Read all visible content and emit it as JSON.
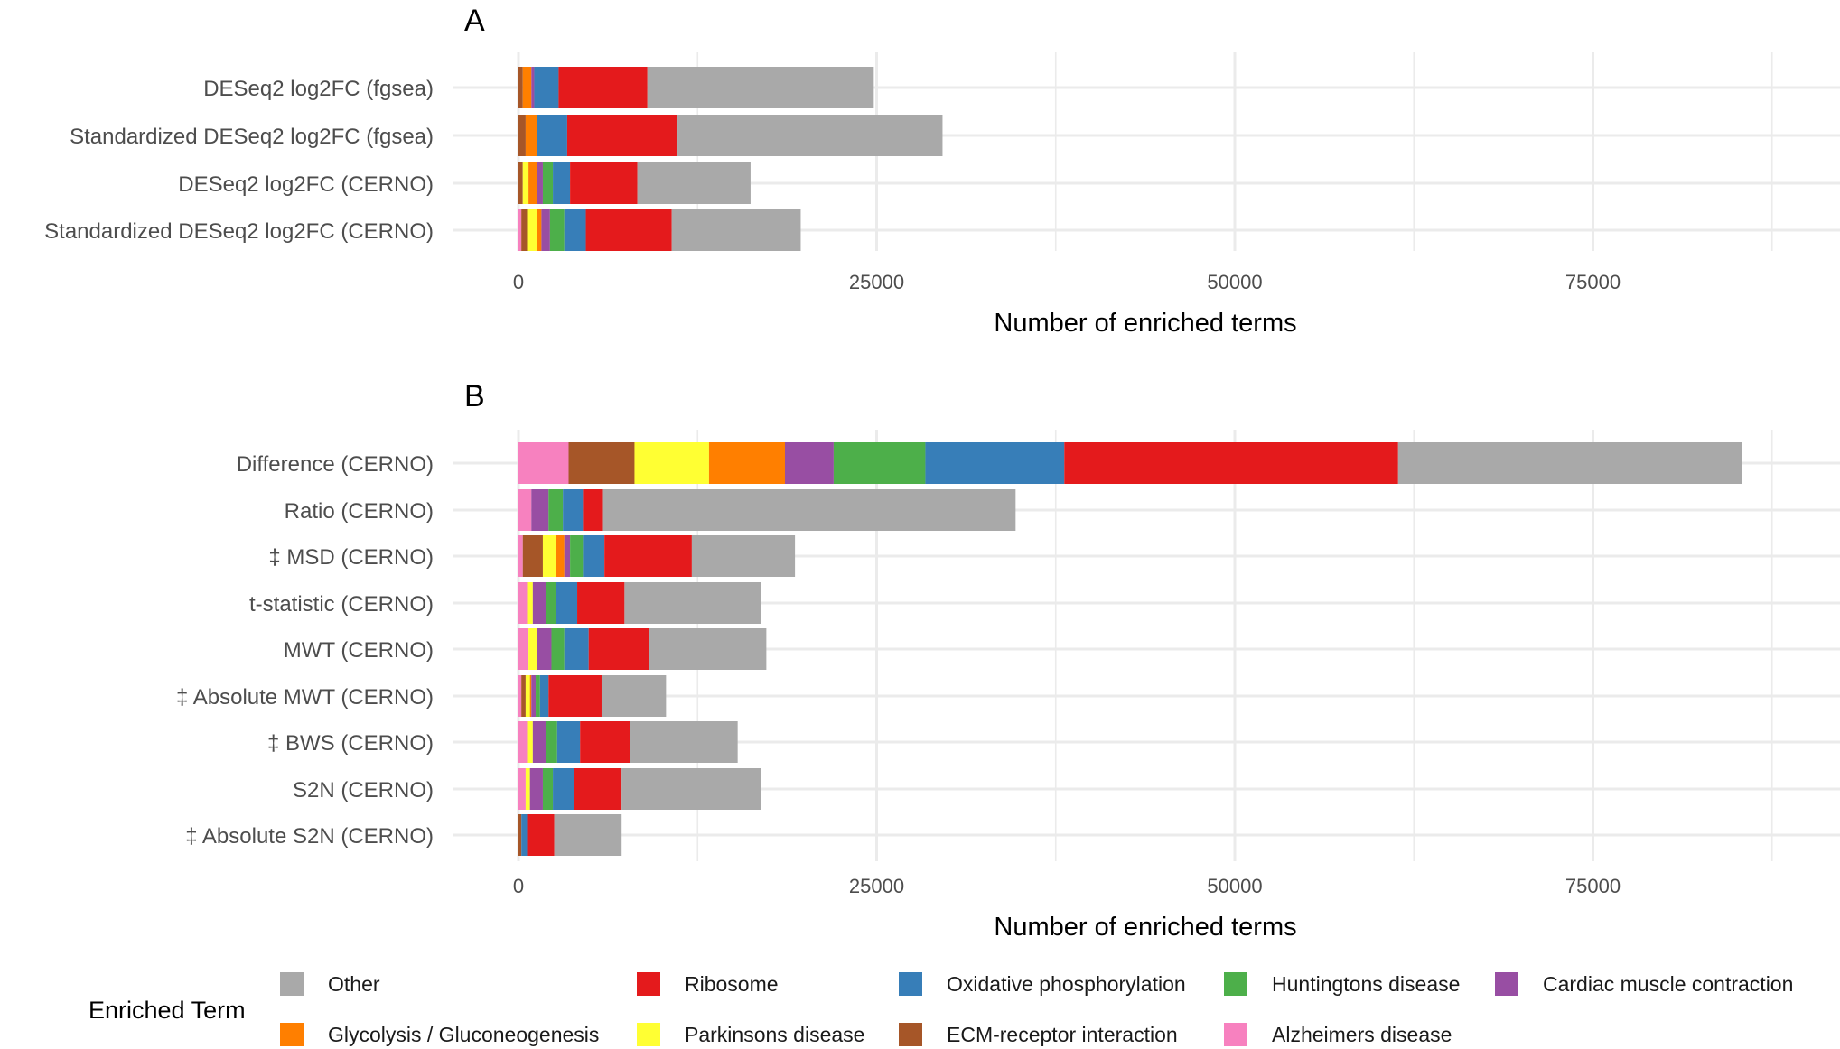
{
  "colors": {
    "Alzheimers disease": "#F781BF",
    "ECM-receptor interaction": "#A65628",
    "Parkinsons disease": "#FFFF33",
    "Glycolysis / Gluconeogenesis": "#FF7F00",
    "Cardiac muscle contraction": "#984EA3",
    "Huntingtons disease": "#4DAF4A",
    "Oxidative phosphorylation": "#377EB8",
    "Ribosome": "#E41A1C",
    "Other": "#A9A9A9"
  },
  "legend": {
    "title": "Enriched Term",
    "items": [
      "Other",
      "Ribosome",
      "Oxidative phosphorylation",
      "Huntingtons disease",
      "Cardiac muscle contraction",
      "Glycolysis / Gluconeogenesis",
      "Parkinsons disease",
      "ECM-receptor interaction",
      "Alzheimers disease"
    ]
  },
  "chart_data": [
    {
      "type": "bar",
      "orientation": "horizontal",
      "stacked": true,
      "panel_label": "A",
      "xlabel": "Number of enriched terms",
      "xlim": [
        0,
        88000
      ],
      "xticks": [
        0,
        25000,
        50000,
        75000
      ],
      "grid": true,
      "legend": "bottom",
      "series_order": [
        "Alzheimers disease",
        "ECM-receptor interaction",
        "Parkinsons disease",
        "Glycolysis / Gluconeogenesis",
        "Cardiac muscle contraction",
        "Huntingtons disease",
        "Oxidative phosphorylation",
        "Ribosome",
        "Other"
      ],
      "categories": [
        "DESeq2 log2FC (fgsea)",
        "Standardized DESeq2 log2FC (fgsea)",
        "DESeq2 log2FC (CERNO)",
        "Standardized DESeq2 log2FC (CERNO)"
      ],
      "series": [
        {
          "name": "Alzheimers disease",
          "values": [
            0,
            0,
            0,
            200
          ]
        },
        {
          "name": "ECM-receptor interaction",
          "values": [
            300,
            500,
            300,
            400
          ]
        },
        {
          "name": "Parkinsons disease",
          "values": [
            0,
            0,
            400,
            700
          ]
        },
        {
          "name": "Glycolysis / Gluconeogenesis",
          "values": [
            600,
            800,
            600,
            300
          ]
        },
        {
          "name": "Cardiac muscle contraction",
          "values": [
            200,
            0,
            400,
            600
          ]
        },
        {
          "name": "Huntingtons disease",
          "values": [
            0,
            0,
            700,
            1000
          ]
        },
        {
          "name": "Oxidative phosphorylation",
          "values": [
            1700,
            2100,
            1200,
            1500
          ]
        },
        {
          "name": "Ribosome",
          "values": [
            6200,
            7700,
            4700,
            6000
          ]
        },
        {
          "name": "Other",
          "values": [
            15800,
            18500,
            7900,
            9000
          ]
        }
      ]
    },
    {
      "type": "bar",
      "orientation": "horizontal",
      "stacked": true,
      "panel_label": "B",
      "xlabel": "Number of enriched terms",
      "xlim": [
        0,
        88000
      ],
      "xticks": [
        0,
        25000,
        50000,
        75000
      ],
      "grid": true,
      "legend": "bottom",
      "series_order": [
        "Alzheimers disease",
        "ECM-receptor interaction",
        "Parkinsons disease",
        "Glycolysis / Gluconeogenesis",
        "Cardiac muscle contraction",
        "Huntingtons disease",
        "Oxidative phosphorylation",
        "Ribosome",
        "Other"
      ],
      "categories": [
        "Difference (CERNO)",
        "Ratio (CERNO)",
        "‡ MSD (CERNO)",
        "t-statistic (CERNO)",
        "MWT (CERNO)",
        "‡ Absolute MWT (CERNO)",
        "‡ BWS (CERNO)",
        "S2N (CERNO)",
        "‡ Absolute S2N (CERNO)"
      ],
      "series": [
        {
          "name": "Alzheimers disease",
          "values": [
            3500,
            900,
            300,
            600,
            700,
            200,
            600,
            500,
            0
          ]
        },
        {
          "name": "ECM-receptor interaction",
          "values": [
            4600,
            0,
            1400,
            0,
            0,
            300,
            0,
            0,
            200
          ]
        },
        {
          "name": "Parkinsons disease",
          "values": [
            5200,
            0,
            900,
            400,
            600,
            300,
            400,
            300,
            0
          ]
        },
        {
          "name": "Glycolysis / Gluconeogenesis",
          "values": [
            5300,
            0,
            600,
            0,
            0,
            100,
            0,
            0,
            0
          ]
        },
        {
          "name": "Cardiac muscle contraction",
          "values": [
            3400,
            1200,
            400,
            900,
            1000,
            300,
            900,
            900,
            0
          ]
        },
        {
          "name": "Huntingtons disease",
          "values": [
            6400,
            1000,
            900,
            700,
            900,
            300,
            800,
            700,
            0
          ]
        },
        {
          "name": "Oxidative phosphorylation",
          "values": [
            9700,
            1400,
            1500,
            1500,
            1700,
            600,
            1600,
            1500,
            400
          ]
        },
        {
          "name": "Ribosome",
          "values": [
            23300,
            1400,
            6100,
            3300,
            4200,
            3700,
            3500,
            3300,
            1900
          ]
        },
        {
          "name": "Other",
          "values": [
            24000,
            28800,
            7200,
            9500,
            8200,
            4500,
            7500,
            9700,
            4700
          ]
        }
      ]
    }
  ]
}
